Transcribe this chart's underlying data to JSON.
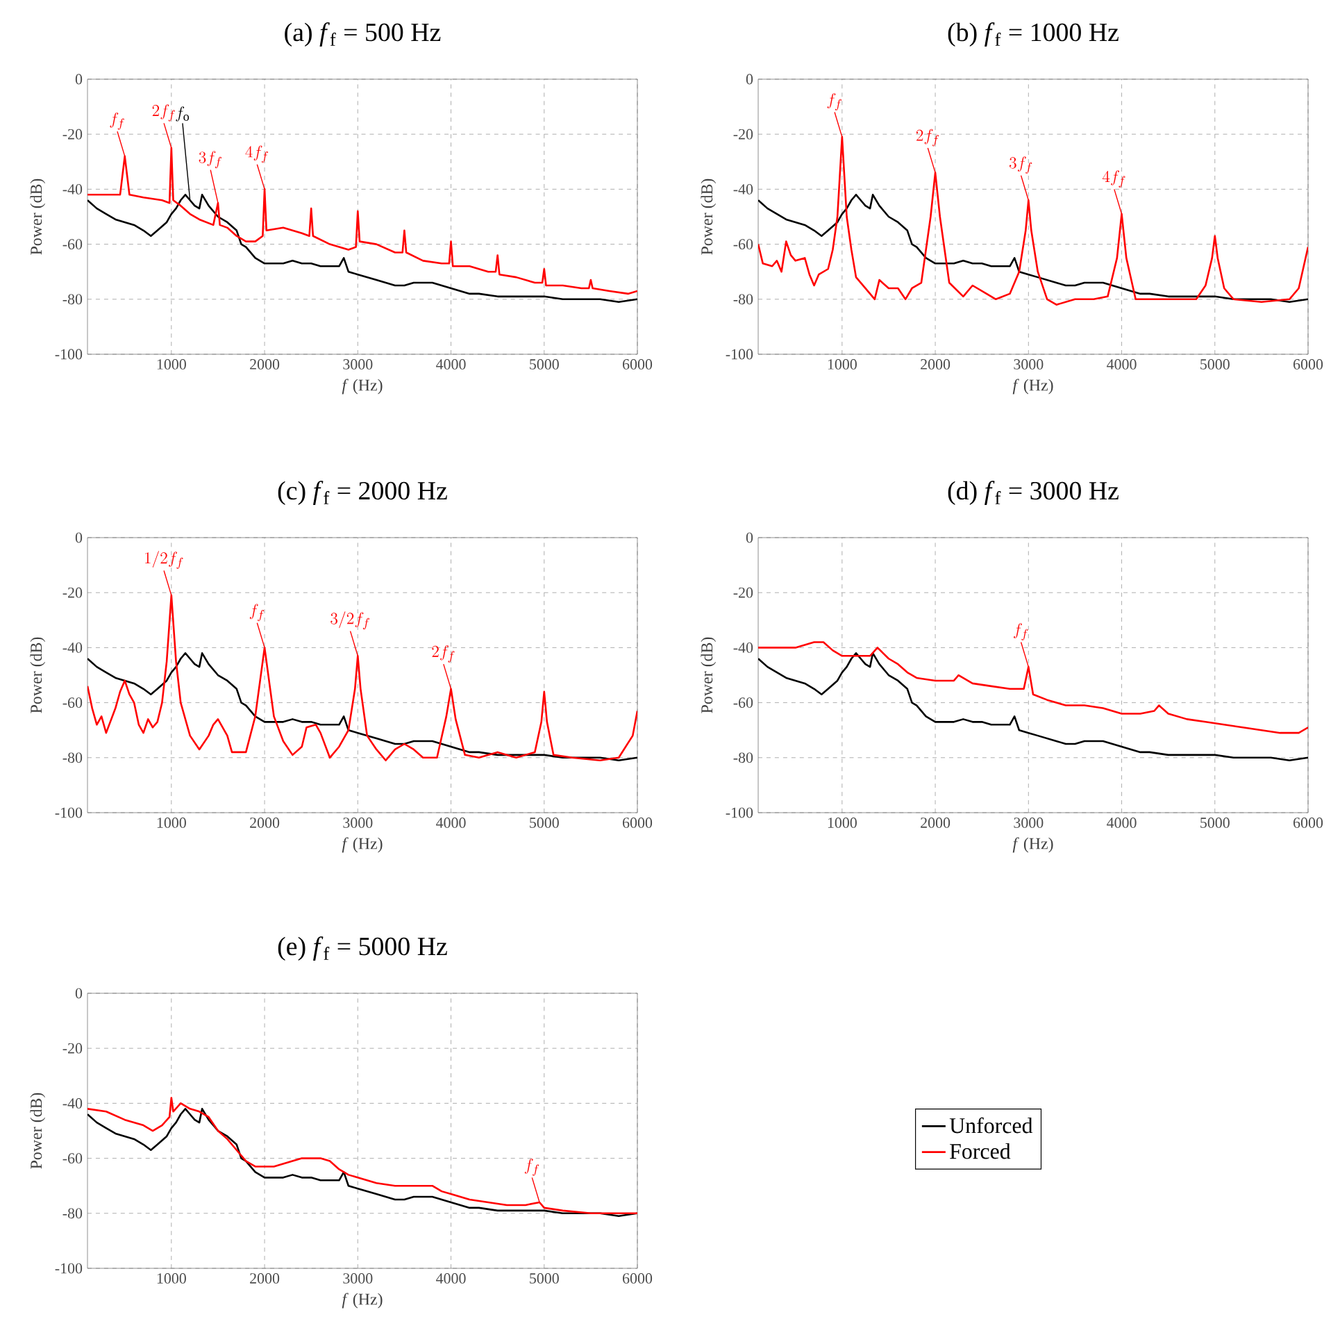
{
  "chart_data": [
    {
      "type": "line",
      "title": "(a) *f*$_{f}$ = 500 Hz",
      "xlabel": "*f* (Hz)",
      "ylabel": "Power (dB)",
      "xlim": [
        100,
        6000
      ],
      "ylim": [
        -100,
        0
      ],
      "xticks": [
        1000,
        2000,
        3000,
        4000,
        5000,
        6000
      ],
      "yticks": [
        -100,
        -80,
        -60,
        -40,
        -20,
        0
      ],
      "grid": true,
      "series": [
        {
          "color": "#000000",
          "x": [
            100,
            200,
            300,
            400,
            500,
            600,
            700,
            780,
            850,
            950,
            1000,
            1050,
            1100,
            1150,
            1200,
            1250,
            1300,
            1330,
            1400,
            1500,
            1600,
            1700,
            1750,
            1800,
            1900,
            2000,
            2100,
            2200,
            2300,
            2400,
            2500,
            2600,
            2700,
            2800,
            2850,
            2900,
            3000,
            3100,
            3200,
            3300,
            3400,
            3500,
            3600,
            3700,
            3800,
            3900,
            4000,
            4100,
            4200,
            4300,
            4500,
            4700,
            5000,
            5200,
            5400,
            5600,
            5800,
            6000
          ],
          "values": [
            -44,
            -47,
            -49,
            -51,
            -52,
            -53,
            -55,
            -57,
            -55,
            -52,
            -49,
            -47,
            -44,
            -42,
            -44,
            -46,
            -47,
            -42,
            -46,
            -50,
            -52,
            -55,
            -60,
            -61,
            -65,
            -67,
            -67,
            -67,
            -66,
            -67,
            -67,
            -68,
            -68,
            -68,
            -65,
            -70,
            -71,
            -72,
            -73,
            -74,
            -75,
            -75,
            -74,
            -74,
            -74,
            -75,
            -76,
            -77,
            -78,
            -78,
            -79,
            -79,
            -79,
            -80,
            -80,
            -80,
            -81,
            -80
          ]
        },
        {
          "color": "#ff0000",
          "x": [
            100,
            300,
            450,
            500,
            550,
            700,
            900,
            980,
            1000,
            1020,
            1100,
            1200,
            1300,
            1450,
            1500,
            1520,
            1600,
            1700,
            1800,
            1900,
            1980,
            2000,
            2020,
            2200,
            2400,
            2480,
            2500,
            2520,
            2700,
            2900,
            2980,
            3000,
            3020,
            3200,
            3400,
            3480,
            3500,
            3520,
            3700,
            3900,
            3980,
            4000,
            4020,
            4200,
            4400,
            4480,
            4500,
            4520,
            4700,
            4900,
            4980,
            5000,
            5020,
            5200,
            5400,
            5480,
            5500,
            5520,
            5700,
            5900,
            6000
          ],
          "values": [
            -42,
            -42,
            -42,
            -28,
            -42,
            -43,
            -44,
            -45,
            -25,
            -44,
            -46,
            -49,
            -51,
            -53,
            -45,
            -53,
            -54,
            -57,
            -59,
            -59,
            -57,
            -40,
            -55,
            -54,
            -56,
            -57,
            -47,
            -57,
            -60,
            -62,
            -61,
            -48,
            -59,
            -60,
            -63,
            -63,
            -55,
            -63,
            -66,
            -67,
            -67,
            -59,
            -68,
            -68,
            -70,
            -70,
            -64,
            -71,
            -72,
            -74,
            -74,
            -69,
            -75,
            -75,
            -76,
            -76,
            -73,
            -76,
            -77,
            -78,
            -77
          ]
        }
      ],
      "annotations": [
        {
          "text": "f_f",
          "x": 500,
          "y": -28
        },
        {
          "text": "2f_f",
          "x": 1000,
          "y": -25
        },
        {
          "text": "f_\\mathrm{o}",
          "x": 1200,
          "y": -44
        },
        {
          "text": "3f_f",
          "x": 1500,
          "y": -45
        },
        {
          "text": "4f_f",
          "x": 2000,
          "y": -40
        }
      ]
    },
    {
      "type": "line",
      "title": "(b) *f*$_{f}$ = 1000 Hz",
      "xlabel": "*f* (Hz)",
      "ylabel": "Power (dB)",
      "xlim": [
        100,
        6000
      ],
      "ylim": [
        -100,
        0
      ],
      "xticks": [
        1000,
        2000,
        3000,
        4000,
        5000,
        6000
      ],
      "yticks": [
        -100,
        -80,
        -60,
        -40,
        -20,
        0
      ],
      "grid": true,
      "series": [
        {
          "color": "#000000",
          "x": [
            100,
            200,
            300,
            400,
            500,
            600,
            700,
            780,
            850,
            950,
            1000,
            1050,
            1100,
            1150,
            1200,
            1250,
            1300,
            1330,
            1400,
            1500,
            1600,
            1700,
            1750,
            1800,
            1900,
            2000,
            2100,
            2200,
            2300,
            2400,
            2500,
            2600,
            2700,
            2800,
            2850,
            2900,
            3000,
            3100,
            3200,
            3300,
            3400,
            3500,
            3600,
            3700,
            3800,
            3900,
            4000,
            4100,
            4200,
            4300,
            4500,
            4700,
            5000,
            5200,
            5400,
            5600,
            5800,
            6000
          ],
          "values": [
            -44,
            -47,
            -49,
            -51,
            -52,
            -53,
            -55,
            -57,
            -55,
            -52,
            -49,
            -47,
            -44,
            -42,
            -44,
            -46,
            -47,
            -42,
            -46,
            -50,
            -52,
            -55,
            -60,
            -61,
            -65,
            -67,
            -67,
            -67,
            -66,
            -67,
            -67,
            -68,
            -68,
            -68,
            -65,
            -70,
            -71,
            -72,
            -73,
            -74,
            -75,
            -75,
            -74,
            -74,
            -74,
            -75,
            -76,
            -77,
            -78,
            -78,
            -79,
            -79,
            -79,
            -80,
            -80,
            -80,
            -81,
            -80
          ]
        },
        {
          "color": "#ff0000",
          "x": [
            100,
            150,
            250,
            300,
            350,
            400,
            450,
            500,
            600,
            650,
            700,
            750,
            850,
            900,
            950,
            1000,
            1050,
            1100,
            1150,
            1300,
            1350,
            1400,
            1500,
            1600,
            1680,
            1750,
            1850,
            1950,
            2000,
            2050,
            2150,
            2300,
            2400,
            2550,
            2650,
            2800,
            2900,
            2970,
            3000,
            3030,
            3100,
            3200,
            3300,
            3500,
            3700,
            3850,
            3950,
            4000,
            4050,
            4150,
            4400,
            4600,
            4800,
            4900,
            4970,
            5000,
            5030,
            5100,
            5200,
            5500,
            5800,
            5900,
            6000
          ],
          "values": [
            -60,
            -67,
            -68,
            -66,
            -70,
            -59,
            -64,
            -66,
            -65,
            -71,
            -75,
            -71,
            -69,
            -62,
            -50,
            -21,
            -50,
            -62,
            -72,
            -78,
            -80,
            -73,
            -76,
            -76,
            -80,
            -76,
            -74,
            -50,
            -34,
            -50,
            -74,
            -79,
            -75,
            -78,
            -80,
            -78,
            -70,
            -55,
            -44,
            -55,
            -70,
            -80,
            -82,
            -80,
            -80,
            -79,
            -65,
            -49,
            -65,
            -80,
            -80,
            -80,
            -80,
            -75,
            -65,
            -57,
            -65,
            -76,
            -80,
            -81,
            -80,
            -76,
            -61
          ]
        }
      ],
      "annotations": [
        {
          "text": "f_f",
          "x": 1000,
          "y": -21
        },
        {
          "text": "2f_f",
          "x": 2000,
          "y": -34
        },
        {
          "text": "3f_f",
          "x": 3000,
          "y": -44
        },
        {
          "text": "4f_f",
          "x": 4000,
          "y": -49
        }
      ]
    },
    {
      "type": "line",
      "title": "(c) *f*$_{f}$ = 2000 Hz",
      "xlabel": "*f* (Hz)",
      "ylabel": "Power (dB)",
      "xlim": [
        100,
        6000
      ],
      "ylim": [
        -100,
        0
      ],
      "xticks": [
        1000,
        2000,
        3000,
        4000,
        5000,
        6000
      ],
      "yticks": [
        -100,
        -80,
        -60,
        -40,
        -20,
        0
      ],
      "grid": true,
      "series": [
        {
          "color": "#000000",
          "x": [
            100,
            200,
            300,
            400,
            500,
            600,
            700,
            780,
            850,
            950,
            1000,
            1050,
            1100,
            1150,
            1200,
            1250,
            1300,
            1330,
            1400,
            1500,
            1600,
            1700,
            1750,
            1800,
            1900,
            2000,
            2100,
            2200,
            2300,
            2400,
            2500,
            2600,
            2700,
            2800,
            2850,
            2900,
            3000,
            3100,
            3200,
            3300,
            3400,
            3500,
            3600,
            3700,
            3800,
            3900,
            4000,
            4100,
            4200,
            4300,
            4500,
            4700,
            5000,
            5200,
            5400,
            5600,
            5800,
            6000
          ],
          "values": [
            -44,
            -47,
            -49,
            -51,
            -52,
            -53,
            -55,
            -57,
            -55,
            -52,
            -49,
            -47,
            -44,
            -42,
            -44,
            -46,
            -47,
            -42,
            -46,
            -50,
            -52,
            -55,
            -60,
            -61,
            -65,
            -67,
            -67,
            -67,
            -66,
            -67,
            -67,
            -68,
            -68,
            -68,
            -65,
            -70,
            -71,
            -72,
            -73,
            -74,
            -75,
            -75,
            -74,
            -74,
            -74,
            -75,
            -76,
            -77,
            -78,
            -78,
            -79,
            -79,
            -79,
            -80,
            -80,
            -80,
            -81,
            -80
          ]
        },
        {
          "color": "#ff0000",
          "x": [
            100,
            150,
            200,
            250,
            300,
            400,
            450,
            500,
            550,
            600,
            650,
            700,
            750,
            800,
            850,
            900,
            950,
            1000,
            1050,
            1100,
            1200,
            1300,
            1400,
            1450,
            1500,
            1600,
            1650,
            1800,
            1900,
            2000,
            2100,
            2200,
            2300,
            2400,
            2450,
            2550,
            2600,
            2700,
            2800,
            2900,
            2970,
            3000,
            3030,
            3100,
            3200,
            3300,
            3400,
            3500,
            3600,
            3700,
            3850,
            3950,
            4000,
            4050,
            4150,
            4300,
            4500,
            4700,
            4900,
            4970,
            5000,
            5030,
            5100,
            5300,
            5600,
            5800,
            5950,
            6000
          ],
          "values": [
            -54,
            -62,
            -68,
            -65,
            -71,
            -62,
            -56,
            -52,
            -57,
            -60,
            -68,
            -71,
            -66,
            -69,
            -67,
            -60,
            -45,
            -21,
            -45,
            -60,
            -72,
            -77,
            -72,
            -68,
            -66,
            -72,
            -78,
            -78,
            -65,
            -40,
            -65,
            -74,
            -79,
            -76,
            -69,
            -68,
            -71,
            -80,
            -76,
            -70,
            -55,
            -43,
            -55,
            -72,
            -77,
            -81,
            -77,
            -75,
            -77,
            -80,
            -80,
            -65,
            -55,
            -66,
            -79,
            -80,
            -78,
            -80,
            -78,
            -67,
            -56,
            -67,
            -79,
            -80,
            -81,
            -80,
            -72,
            -63
          ]
        }
      ],
      "annotations": [
        {
          "text": "1/2f_f",
          "x": 1000,
          "y": -21
        },
        {
          "text": "f_f",
          "x": 2000,
          "y": -40
        },
        {
          "text": "3/2f_f",
          "x": 3000,
          "y": -43
        },
        {
          "text": "2f_f",
          "x": 4000,
          "y": -55
        }
      ]
    },
    {
      "type": "line",
      "title": "(d) *f*$_{f}$ = 3000 Hz",
      "xlabel": "*f* (Hz)",
      "ylabel": "Power (dB)",
      "xlim": [
        100,
        6000
      ],
      "ylim": [
        -100,
        0
      ],
      "xticks": [
        1000,
        2000,
        3000,
        4000,
        5000,
        6000
      ],
      "yticks": [
        -100,
        -80,
        -60,
        -40,
        -20,
        0
      ],
      "grid": true,
      "series": [
        {
          "color": "#000000",
          "x": [
            100,
            200,
            300,
            400,
            500,
            600,
            700,
            780,
            850,
            950,
            1000,
            1050,
            1100,
            1150,
            1200,
            1250,
            1300,
            1330,
            1400,
            1500,
            1600,
            1700,
            1750,
            1800,
            1900,
            2000,
            2100,
            2200,
            2300,
            2400,
            2500,
            2600,
            2700,
            2800,
            2850,
            2900,
            3000,
            3100,
            3200,
            3300,
            3400,
            3500,
            3600,
            3700,
            3800,
            3900,
            4000,
            4100,
            4200,
            4300,
            4500,
            4700,
            5000,
            5200,
            5400,
            5600,
            5800,
            6000
          ],
          "values": [
            -44,
            -47,
            -49,
            -51,
            -52,
            -53,
            -55,
            -57,
            -55,
            -52,
            -49,
            -47,
            -44,
            -42,
            -44,
            -46,
            -47,
            -42,
            -46,
            -50,
            -52,
            -55,
            -60,
            -61,
            -65,
            -67,
            -67,
            -67,
            -66,
            -67,
            -67,
            -68,
            -68,
            -68,
            -65,
            -70,
            -71,
            -72,
            -73,
            -74,
            -75,
            -75,
            -74,
            -74,
            -74,
            -75,
            -76,
            -77,
            -78,
            -78,
            -79,
            -79,
            -79,
            -80,
            -80,
            -80,
            -81,
            -80
          ]
        },
        {
          "color": "#ff0000",
          "x": [
            100,
            300,
            500,
            700,
            800,
            900,
            1000,
            1200,
            1300,
            1380,
            1500,
            1600,
            1700,
            1800,
            2000,
            2200,
            2250,
            2400,
            2600,
            2800,
            2950,
            3000,
            3050,
            3200,
            3400,
            3600,
            3800,
            4000,
            4200,
            4350,
            4400,
            4500,
            4700,
            4900,
            5100,
            5300,
            5500,
            5700,
            5900,
            6000
          ],
          "values": [
            -40,
            -40,
            -40,
            -38,
            -38,
            -41,
            -43,
            -43,
            -43,
            -40,
            -44,
            -46,
            -49,
            -51,
            -52,
            -52,
            -50,
            -53,
            -54,
            -55,
            -55,
            -47,
            -57,
            -59,
            -61,
            -61,
            -62,
            -64,
            -64,
            -63,
            -61,
            -64,
            -66,
            -67,
            -68,
            -69,
            -70,
            -71,
            -71,
            -69
          ]
        }
      ],
      "annotations": [
        {
          "text": "f_f",
          "x": 3000,
          "y": -47
        }
      ]
    },
    {
      "type": "line",
      "title": "(e) *f*$_{f}$ = 5000 Hz",
      "xlabel": "*f* (Hz)",
      "ylabel": "Power (dB)",
      "xlim": [
        100,
        6000
      ],
      "ylim": [
        -100,
        0
      ],
      "xticks": [
        1000,
        2000,
        3000,
        4000,
        5000,
        6000
      ],
      "yticks": [
        -100,
        -80,
        -60,
        -40,
        -20,
        0
      ],
      "grid": true,
      "legend": "right",
      "series": [
        {
          "name": "Unforced",
          "color": "#000000",
          "x": [
            100,
            200,
            300,
            400,
            500,
            600,
            700,
            780,
            850,
            950,
            1000,
            1050,
            1100,
            1150,
            1200,
            1250,
            1300,
            1330,
            1400,
            1500,
            1600,
            1700,
            1750,
            1800,
            1900,
            2000,
            2100,
            2200,
            2300,
            2400,
            2500,
            2600,
            2700,
            2800,
            2850,
            2900,
            3000,
            3100,
            3200,
            3300,
            3400,
            3500,
            3600,
            3700,
            3800,
            3900,
            4000,
            4100,
            4200,
            4300,
            4500,
            4700,
            5000,
            5200,
            5400,
            5600,
            5800,
            6000
          ],
          "values": [
            -44,
            -47,
            -49,
            -51,
            -52,
            -53,
            -55,
            -57,
            -55,
            -52,
            -49,
            -47,
            -44,
            -42,
            -44,
            -46,
            -47,
            -42,
            -46,
            -50,
            -52,
            -55,
            -60,
            -61,
            -65,
            -67,
            -67,
            -67,
            -66,
            -67,
            -67,
            -68,
            -68,
            -68,
            -65,
            -70,
            -71,
            -72,
            -73,
            -74,
            -75,
            -75,
            -74,
            -74,
            -74,
            -75,
            -76,
            -77,
            -78,
            -78,
            -79,
            -79,
            -79,
            -80,
            -80,
            -80,
            -81,
            -80
          ]
        },
        {
          "name": "Forced",
          "color": "#ff0000",
          "x": [
            100,
            300,
            500,
            700,
            800,
            900,
            980,
            1000,
            1020,
            1100,
            1200,
            1300,
            1400,
            1500,
            1600,
            1700,
            1800,
            1900,
            2000,
            2100,
            2200,
            2400,
            2500,
            2600,
            2700,
            2800,
            2900,
            3000,
            3200,
            3400,
            3600,
            3800,
            3900,
            4000,
            4200,
            4400,
            4600,
            4800,
            4950,
            5000,
            5200,
            5500,
            5800,
            6000
          ],
          "values": [
            -42,
            -43,
            -46,
            -48,
            -50,
            -48,
            -45,
            -38,
            -43,
            -40,
            -42,
            -43,
            -45,
            -50,
            -53,
            -57,
            -61,
            -63,
            -63,
            -63,
            -62,
            -60,
            -60,
            -60,
            -61,
            -64,
            -66,
            -67,
            -69,
            -70,
            -70,
            -70,
            -72,
            -73,
            -75,
            -76,
            -77,
            -77,
            -76,
            -78,
            -79,
            -80,
            -80,
            -80
          ]
        }
      ],
      "annotations": [
        {
          "text": "f_f",
          "x": 4950,
          "y": -76
        }
      ]
    }
  ]
}
